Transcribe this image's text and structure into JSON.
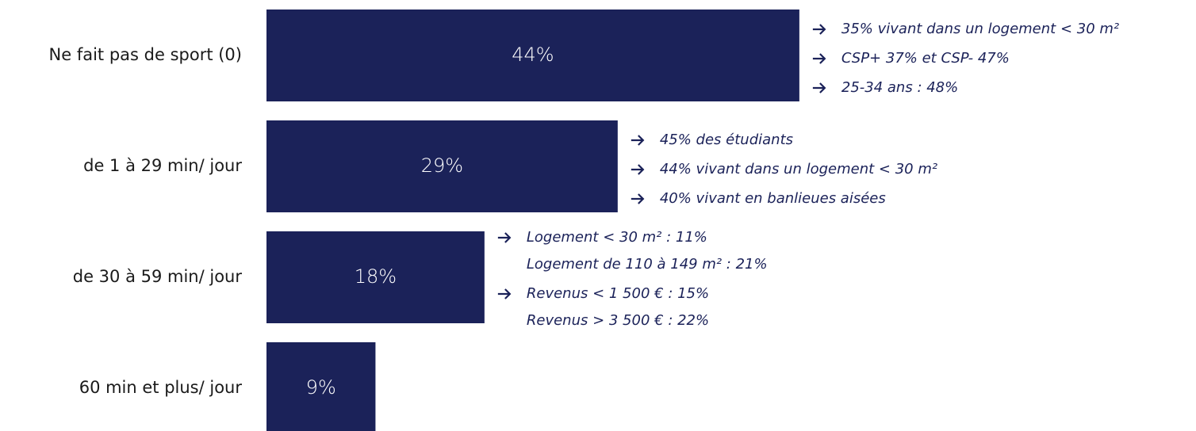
{
  "chart_data": {
    "type": "bar",
    "orientation": "horizontal",
    "color": "#1b2259",
    "categories": [
      "Ne fait pas de sport (0)",
      "de 1 à 29 min/ jour",
      "de 30 à 59 min/ jour",
      "60 min et plus/ jour"
    ],
    "values": [
      44,
      29,
      18,
      9
    ],
    "value_labels": [
      "44%",
      "29%",
      "18%",
      "9%"
    ],
    "annotations": [
      [
        [
          "35% vivant dans un logement < 30 m²"
        ],
        [
          "CSP+ 37% et CSP- 47%"
        ],
        [
          "25-34 ans : 48%"
        ]
      ],
      [
        [
          "45% des étudiants"
        ],
        [
          "44% vivant dans un logement < 30 m²"
        ],
        [
          "40% vivant en banlieues aisées"
        ]
      ],
      [
        [
          "Logement < 30 m² : 11%",
          "Logement de 110 à 149 m² : 21%"
        ],
        [
          "Revenus < 1 500 € : 15%",
          "Revenus > 3 500 € : 22%"
        ]
      ],
      []
    ]
  }
}
